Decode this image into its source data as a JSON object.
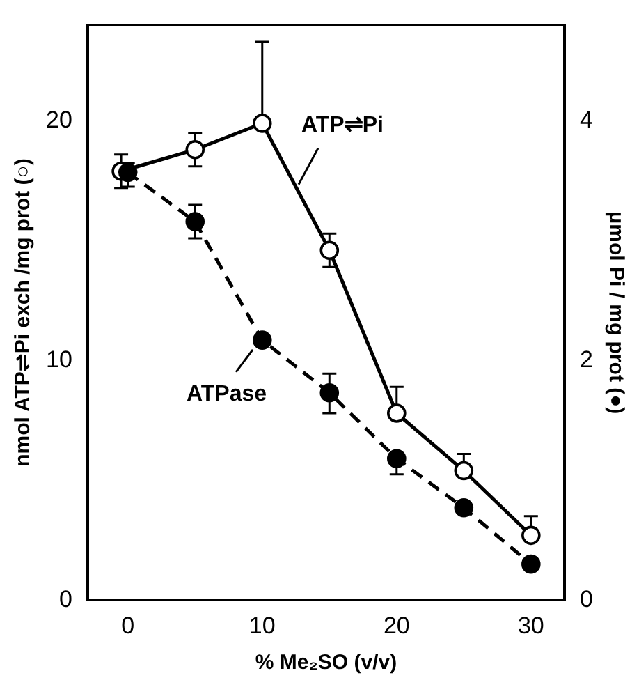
{
  "chart_data": {
    "type": "line",
    "xlabel": "% Me₂SO (v/v)",
    "ylabel": "nmol ATP⇌Pi exch /mg prot (○)",
    "y2label": "μmol Pi / mg prot (●)",
    "xlim": [
      -3,
      32.5
    ],
    "xticks": [
      0,
      10,
      20,
      30
    ],
    "ylim": [
      0,
      24
    ],
    "yticks": [
      0,
      10,
      20
    ],
    "y2lim": [
      0,
      4.8
    ],
    "y2ticks": [
      0,
      2,
      4
    ],
    "grid": false,
    "legend": false,
    "marker": "circle",
    "series": [
      {
        "type": "line",
        "color": "#000000",
        "line_style": "solid",
        "x": [
          -0.5,
          5,
          10,
          15,
          20,
          25,
          30
        ],
        "values": [
          17.9,
          18.8,
          19.9,
          14.6,
          7.8,
          5.4,
          2.7
        ],
        "errors": [
          [
            17.2,
            18.6
          ],
          [
            18.1,
            19.5
          ],
          [
            19.9,
            23.3
          ],
          [
            13.9,
            15.3
          ],
          [
            7.8,
            8.9
          ],
          [
            5.4,
            6.1
          ],
          [
            2.7,
            3.5
          ]
        ]
      },
      {
        "type": "line",
        "color": "#000000",
        "line_style": "dashed",
        "axis": "y2",
        "x": [
          0,
          5,
          10,
          15,
          20,
          25,
          30
        ],
        "values": [
          3.57,
          3.16,
          2.17,
          1.73,
          1.18,
          0.77,
          0.3
        ],
        "errors": [
          [
            3.45,
            3.65
          ],
          [
            3.02,
            3.3
          ],
          null,
          [
            1.56,
            1.89
          ],
          [
            1.05,
            1.18
          ],
          null,
          null
        ]
      }
    ],
    "annotations": [
      {
        "text": "ATP⇌Pi",
        "x": 12.5,
        "y": 17
      },
      {
        "text": "ATPase",
        "x": 9.5,
        "y": 10.8
      }
    ]
  }
}
